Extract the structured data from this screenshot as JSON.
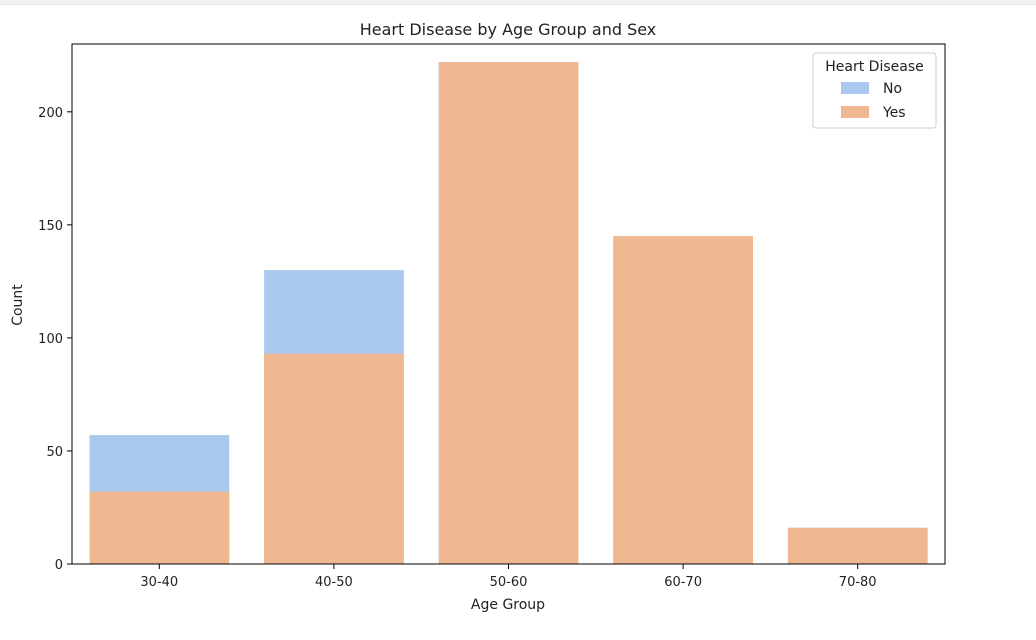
{
  "chart_data": {
    "type": "bar",
    "title": "Heart Disease by Age Group and Sex",
    "xlabel": "Age Group",
    "ylabel": "Count",
    "categories": [
      "30-40",
      "40-50",
      "50-60",
      "60-70",
      "70-80"
    ],
    "series": [
      {
        "name": "No",
        "color": "#abc9ee",
        "values": [
          57,
          130,
          222,
          145,
          16
        ]
      },
      {
        "name": "Yes",
        "color": "#f0b891",
        "values": [
          32,
          93,
          222,
          145,
          16
        ]
      }
    ],
    "yticks": [
      0,
      50,
      100,
      150,
      200
    ],
    "ylim": [
      0,
      230
    ],
    "grid": false,
    "legend": {
      "title": "Heart Disease",
      "placement": "top-right"
    }
  }
}
